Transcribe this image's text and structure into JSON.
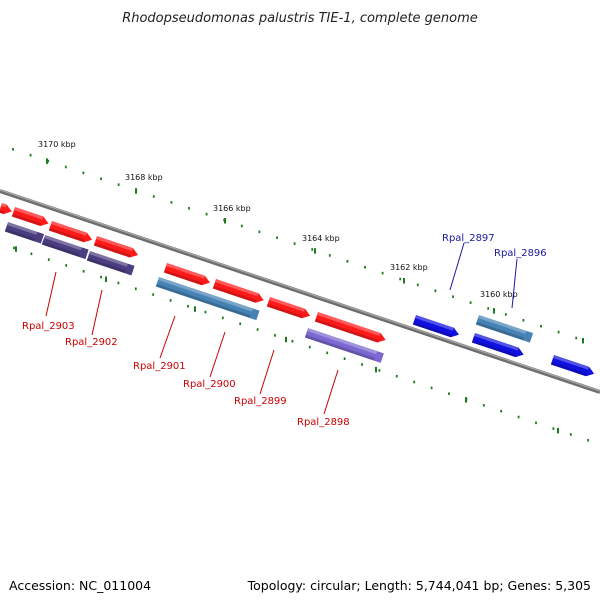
{
  "title": "Rhodopseudomonas palustris TIE-1, complete genome",
  "footer": {
    "accession": "Accession: NC_011004",
    "summary": "Topology: circular; Length: 5,744,041 bp; Genes: 5,305"
  },
  "colors": {
    "backbone": "#808080",
    "tick": "#1e7a1e",
    "red_gene": "#ff1a1a",
    "purple_gene": "#4a3d80",
    "steel_gene": "#4682b4",
    "lavender_gene": "#7b68d0",
    "blue_gene": "#1010e0",
    "label_red": "#cc0000",
    "label_blue": "#1a1aa0"
  },
  "scale": {
    "unit": "kbp",
    "labels": [
      {
        "kbp": 3170,
        "text": "3170 kbp"
      },
      {
        "kbp": 3168,
        "text": "3168 kbp"
      },
      {
        "kbp": 3166,
        "text": "3166 kbp"
      },
      {
        "kbp": 3164,
        "text": "3164 kbp"
      },
      {
        "kbp": 3162,
        "text": "3162 kbp"
      },
      {
        "kbp": 3160,
        "text": "3160 kbp"
      }
    ]
  },
  "gene_labels": [
    {
      "name": "Rpal_2903",
      "color": "label_red"
    },
    {
      "name": "Rpal_2902",
      "color": "label_red"
    },
    {
      "name": "Rpal_2901",
      "color": "label_red"
    },
    {
      "name": "Rpal_2900",
      "color": "label_red"
    },
    {
      "name": "Rpal_2899",
      "color": "label_red"
    },
    {
      "name": "Rpal_2898",
      "color": "label_red"
    },
    {
      "name": "Rpal_2897",
      "color": "label_blue"
    },
    {
      "name": "Rpal_2896",
      "color": "label_blue"
    }
  ]
}
